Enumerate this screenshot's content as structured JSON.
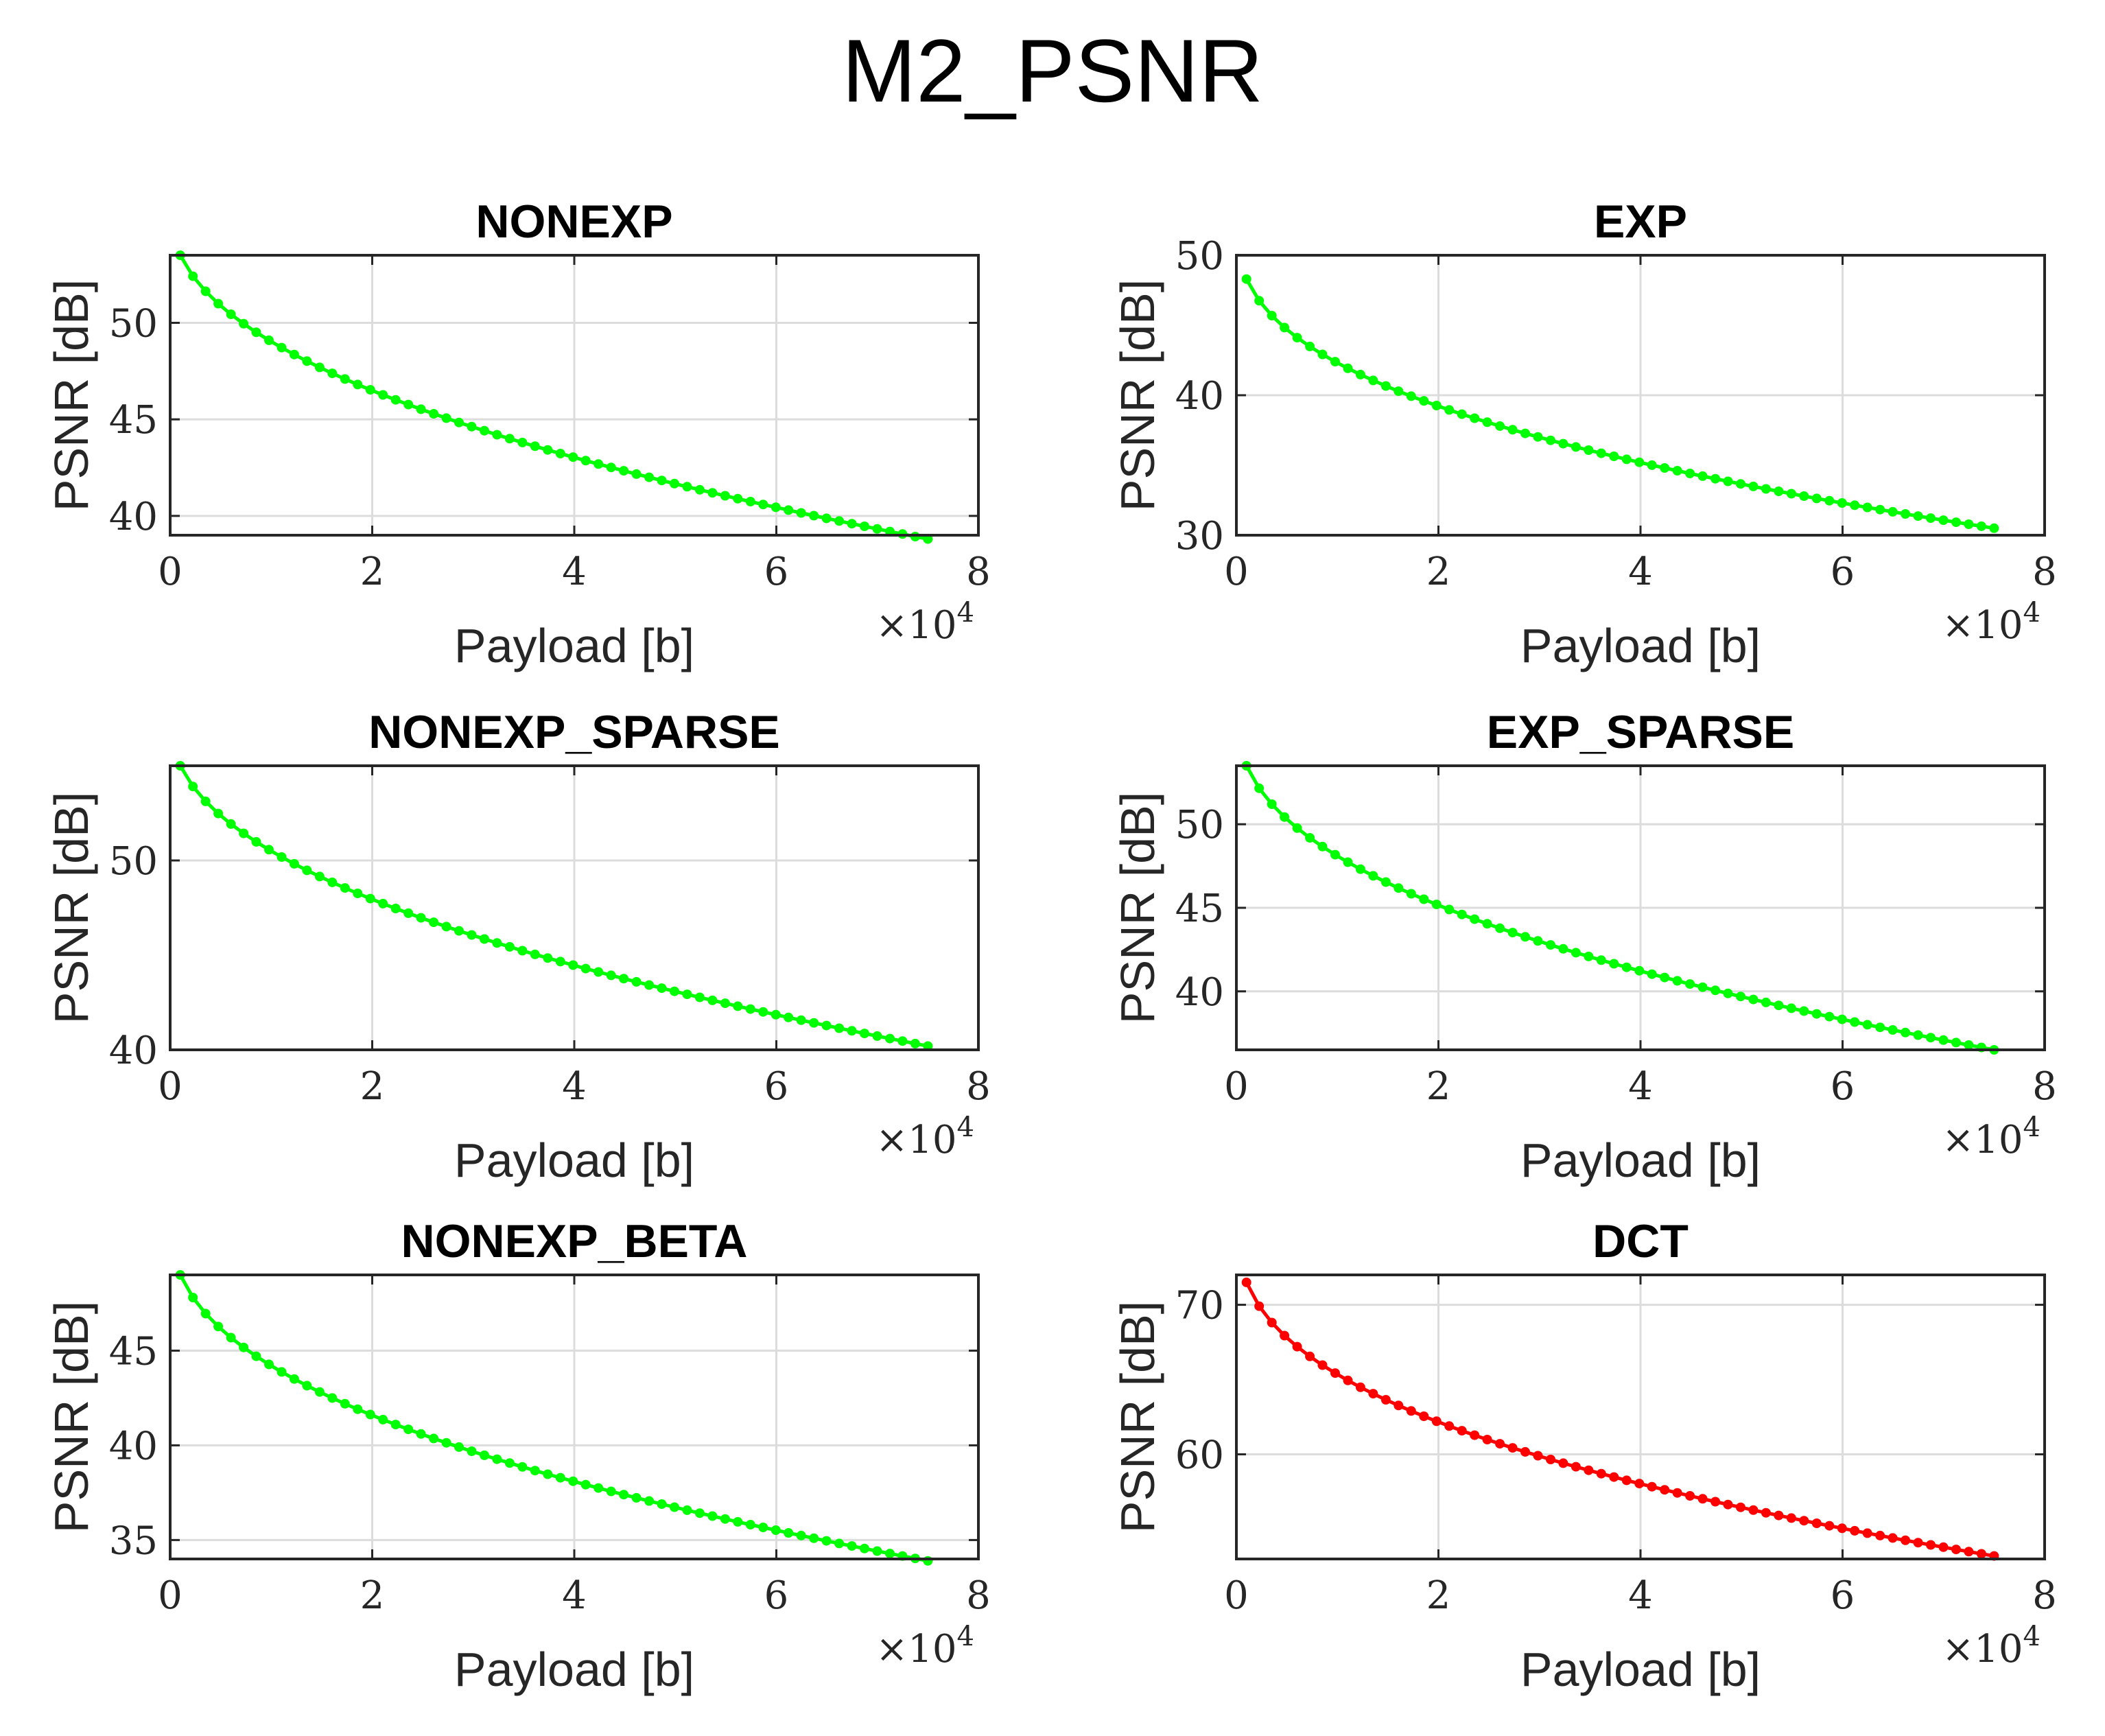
{
  "figure_title": "M2_PSNR",
  "chart_data": [
    {
      "type": "line",
      "title": "NONEXP",
      "xlabel": "Payload [b]",
      "ylabel": "PSNR [dB]",
      "x_exponent_label": "×10",
      "x_exponent_power": "4",
      "xlim": [
        0,
        8
      ],
      "ylim": [
        39,
        53.5
      ],
      "xticks": [
        0,
        2,
        4,
        6,
        8
      ],
      "yticks": [
        40,
        45,
        50
      ],
      "color": "#00ff00",
      "grid": true,
      "series": [
        {
          "name": "NONEXP",
          "x_start": 0.1,
          "x_end": 7.5,
          "points": 60,
          "y_start": 53.5,
          "y_end": 38.8,
          "shape": 0.45
        }
      ]
    },
    {
      "type": "line",
      "title": "EXP",
      "xlabel": "Payload [b]",
      "ylabel": "PSNR [dB]",
      "x_exponent_label": "×10",
      "x_exponent_power": "4",
      "xlim": [
        0,
        8
      ],
      "ylim": [
        30,
        50
      ],
      "xticks": [
        0,
        2,
        4,
        6,
        8
      ],
      "yticks": [
        30,
        40,
        50
      ],
      "color": "#00ff00",
      "grid": true,
      "series": [
        {
          "name": "EXP",
          "x_start": 0.1,
          "x_end": 7.5,
          "points": 60,
          "y_start": 48.3,
          "y_end": 30.5,
          "shape": 0.38
        }
      ]
    },
    {
      "type": "line",
      "title": "NONEXP_SPARSE",
      "xlabel": "Payload [b]",
      "ylabel": "PSNR [dB]",
      "x_exponent_label": "×10",
      "x_exponent_power": "4",
      "xlim": [
        0,
        8
      ],
      "ylim": [
        40,
        55
      ],
      "xticks": [
        0,
        2,
        4,
        6,
        8
      ],
      "yticks": [
        40,
        50
      ],
      "color": "#00ff00",
      "grid": true,
      "series": [
        {
          "name": "NONEXP_SPARSE",
          "x_start": 0.1,
          "x_end": 7.5,
          "points": 60,
          "y_start": 55.0,
          "y_end": 40.2,
          "shape": 0.45
        }
      ]
    },
    {
      "type": "line",
      "title": "EXP_SPARSE",
      "xlabel": "Payload [b]",
      "ylabel": "PSNR [dB]",
      "x_exponent_label": "×10",
      "x_exponent_power": "4",
      "xlim": [
        0,
        8
      ],
      "ylim": [
        36.5,
        53.5
      ],
      "xticks": [
        0,
        2,
        4,
        6,
        8
      ],
      "yticks": [
        40,
        45,
        50
      ],
      "color": "#00ff00",
      "grid": true,
      "series": [
        {
          "name": "EXP_SPARSE",
          "x_start": 0.1,
          "x_end": 7.5,
          "points": 60,
          "y_start": 53.5,
          "y_end": 36.5,
          "shape": 0.42
        }
      ]
    },
    {
      "type": "line",
      "title": "NONEXP_BETA",
      "xlabel": "Payload [b]",
      "ylabel": "PSNR [dB]",
      "x_exponent_label": "×10",
      "x_exponent_power": "4",
      "xlim": [
        0,
        8
      ],
      "ylim": [
        34,
        49
      ],
      "xticks": [
        0,
        2,
        4,
        6,
        8
      ],
      "yticks": [
        35,
        40,
        45
      ],
      "color": "#00ff00",
      "grid": true,
      "series": [
        {
          "name": "NONEXP_BETA",
          "x_start": 0.1,
          "x_end": 7.5,
          "points": 60,
          "y_start": 49.0,
          "y_end": 33.9,
          "shape": 0.42
        }
      ]
    },
    {
      "type": "line",
      "title": "DCT",
      "xlabel": "Payload [b]",
      "ylabel": "PSNR [dB]",
      "x_exponent_label": "×10",
      "x_exponent_power": "4",
      "xlim": [
        0,
        8
      ],
      "ylim": [
        53,
        72
      ],
      "xticks": [
        0,
        2,
        4,
        6,
        8
      ],
      "yticks": [
        60,
        70
      ],
      "color": "#ff0000",
      "grid": true,
      "series": [
        {
          "name": "DCT",
          "x_start": 0.1,
          "x_end": 7.5,
          "points": 60,
          "y_start": 71.5,
          "y_end": 53.2,
          "shape": 0.38
        }
      ]
    }
  ]
}
